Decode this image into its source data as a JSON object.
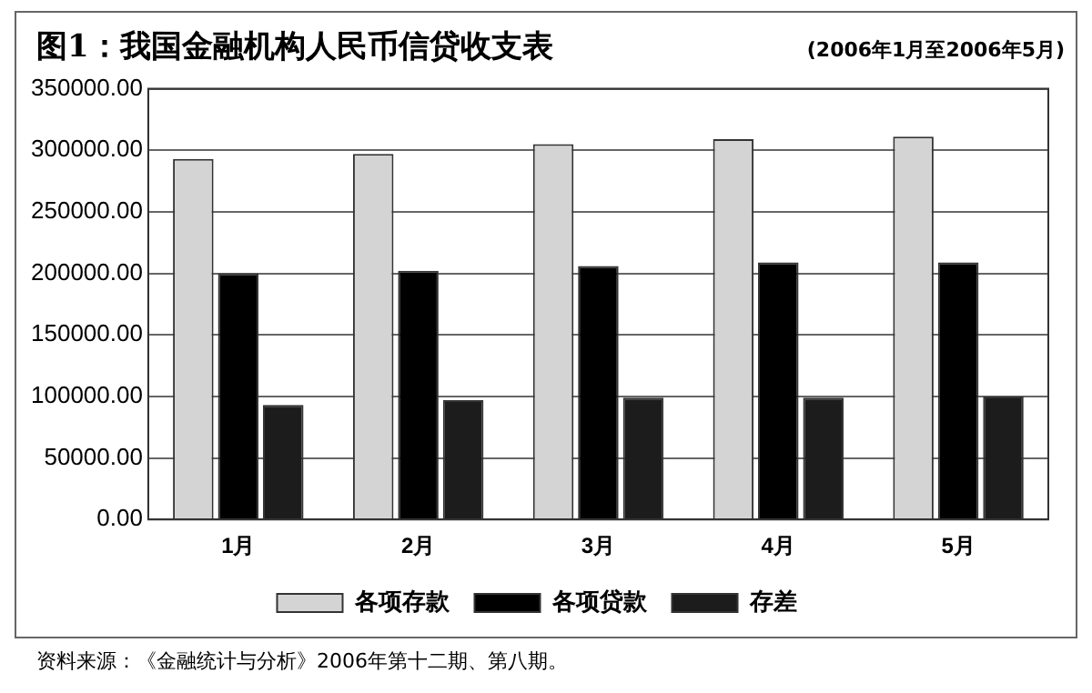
{
  "chart_data": {
    "type": "bar",
    "title": "图1：我国金融机构人民币信贷收支表",
    "subtitle": "(2006年1月至2006年5月)",
    "categories": [
      "1月",
      "2月",
      "3月",
      "4月",
      "5月"
    ],
    "series": [
      {
        "name": "各项存款",
        "color": "#d4d4d4",
        "values": [
          293000,
          297000,
          305000,
          309000,
          311000
        ]
      },
      {
        "name": "各项贷款",
        "color": "#000000",
        "values": [
          200000,
          202000,
          206000,
          209000,
          209000
        ]
      },
      {
        "name": "存差",
        "color": "#1c1c1c",
        "values": [
          93000,
          97000,
          99000,
          99000,
          100000
        ]
      }
    ],
    "ylim": [
      0,
      350000
    ],
    "yticks": [
      {
        "value": 0,
        "label": "0.00"
      },
      {
        "value": 50000,
        "label": "50000.00"
      },
      {
        "value": 100000,
        "label": "100000.00"
      },
      {
        "value": 150000,
        "label": "150000.00"
      },
      {
        "value": 200000,
        "label": "200000.00"
      },
      {
        "value": 250000,
        "label": "250000.00"
      },
      {
        "value": 300000,
        "label": "300000.00"
      },
      {
        "value": 350000,
        "label": "350000.00"
      }
    ],
    "grid": "y",
    "legend": "bottom",
    "annotations": [
      "资料来源：《金融统计与分析》2006年第十二期、第八期。"
    ]
  }
}
